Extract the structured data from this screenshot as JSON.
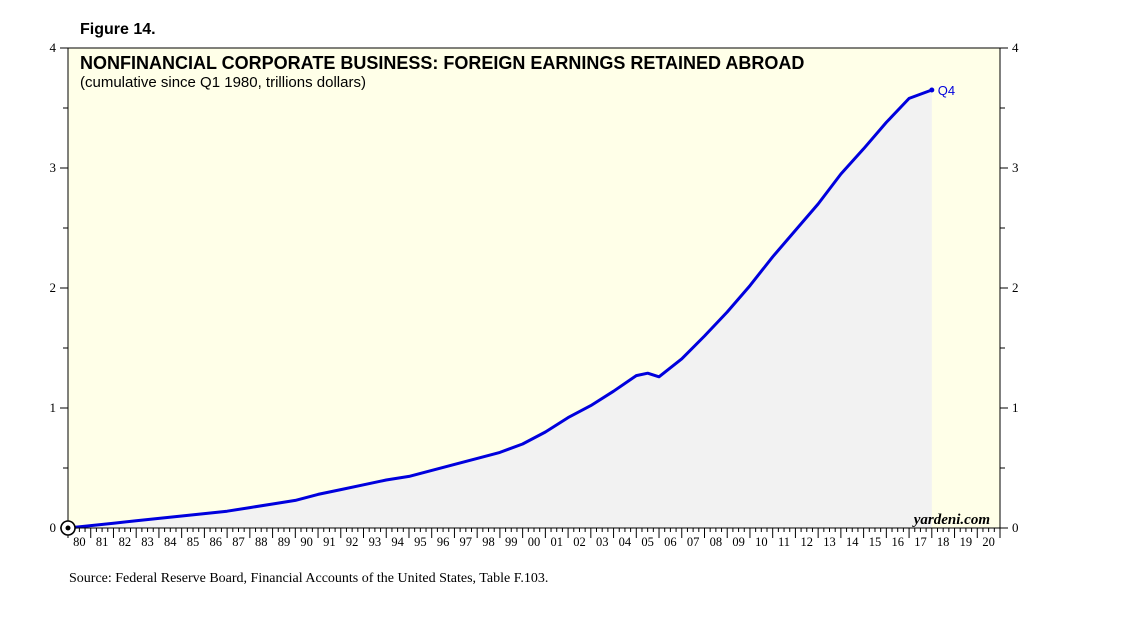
{
  "figure_label": "Figure 14.",
  "source": "Source: Federal Reserve Board, Financial Accounts of the United States, Table F.103.",
  "brand": "yardeni.com",
  "colors": {
    "plot_background": "#ffffe8",
    "area_fill": "#f2f2f2",
    "line": "#0000dd"
  },
  "chart_data": {
    "type": "area",
    "title": "NONFINANCIAL CORPORATE BUSINESS: FOREIGN EARNINGS RETAINED ABROAD",
    "subtitle": "(cumulative since Q1 1980, trillions dollars)",
    "end_label": "Q4",
    "ylim": [
      0,
      4
    ],
    "y_ticks": [
      0,
      1,
      2,
      3,
      4
    ],
    "y_axis_sides": [
      "left",
      "right"
    ],
    "xlim": [
      1980,
      2021
    ],
    "x_tick_labels": [
      "80",
      "81",
      "82",
      "83",
      "84",
      "85",
      "86",
      "87",
      "88",
      "89",
      "90",
      "91",
      "92",
      "93",
      "94",
      "95",
      "96",
      "97",
      "98",
      "99",
      "00",
      "01",
      "02",
      "03",
      "04",
      "05",
      "06",
      "07",
      "08",
      "09",
      "10",
      "11",
      "12",
      "13",
      "14",
      "15",
      "16",
      "17",
      "18",
      "19",
      "20"
    ],
    "series": [
      {
        "x": [
          1980,
          1981,
          1982,
          1983,
          1984,
          1985,
          1986,
          1987,
          1988,
          1989,
          1990,
          1991,
          1992,
          1993,
          1994,
          1995,
          1996,
          1997,
          1998,
          1999,
          2000,
          2001,
          2002,
          2003,
          2004,
          2005,
          2005.5,
          2006,
          2007,
          2008,
          2009,
          2010,
          2011,
          2012,
          2013,
          2014,
          2015,
          2016,
          2017,
          2018
        ],
        "y": [
          0.0,
          0.02,
          0.04,
          0.06,
          0.08,
          0.1,
          0.12,
          0.14,
          0.17,
          0.2,
          0.23,
          0.28,
          0.32,
          0.36,
          0.4,
          0.43,
          0.48,
          0.53,
          0.58,
          0.63,
          0.7,
          0.8,
          0.92,
          1.02,
          1.14,
          1.27,
          1.29,
          1.26,
          1.41,
          1.6,
          1.8,
          2.02,
          2.26,
          2.48,
          2.7,
          2.95,
          3.16,
          3.38,
          3.58,
          3.65
        ]
      }
    ]
  }
}
